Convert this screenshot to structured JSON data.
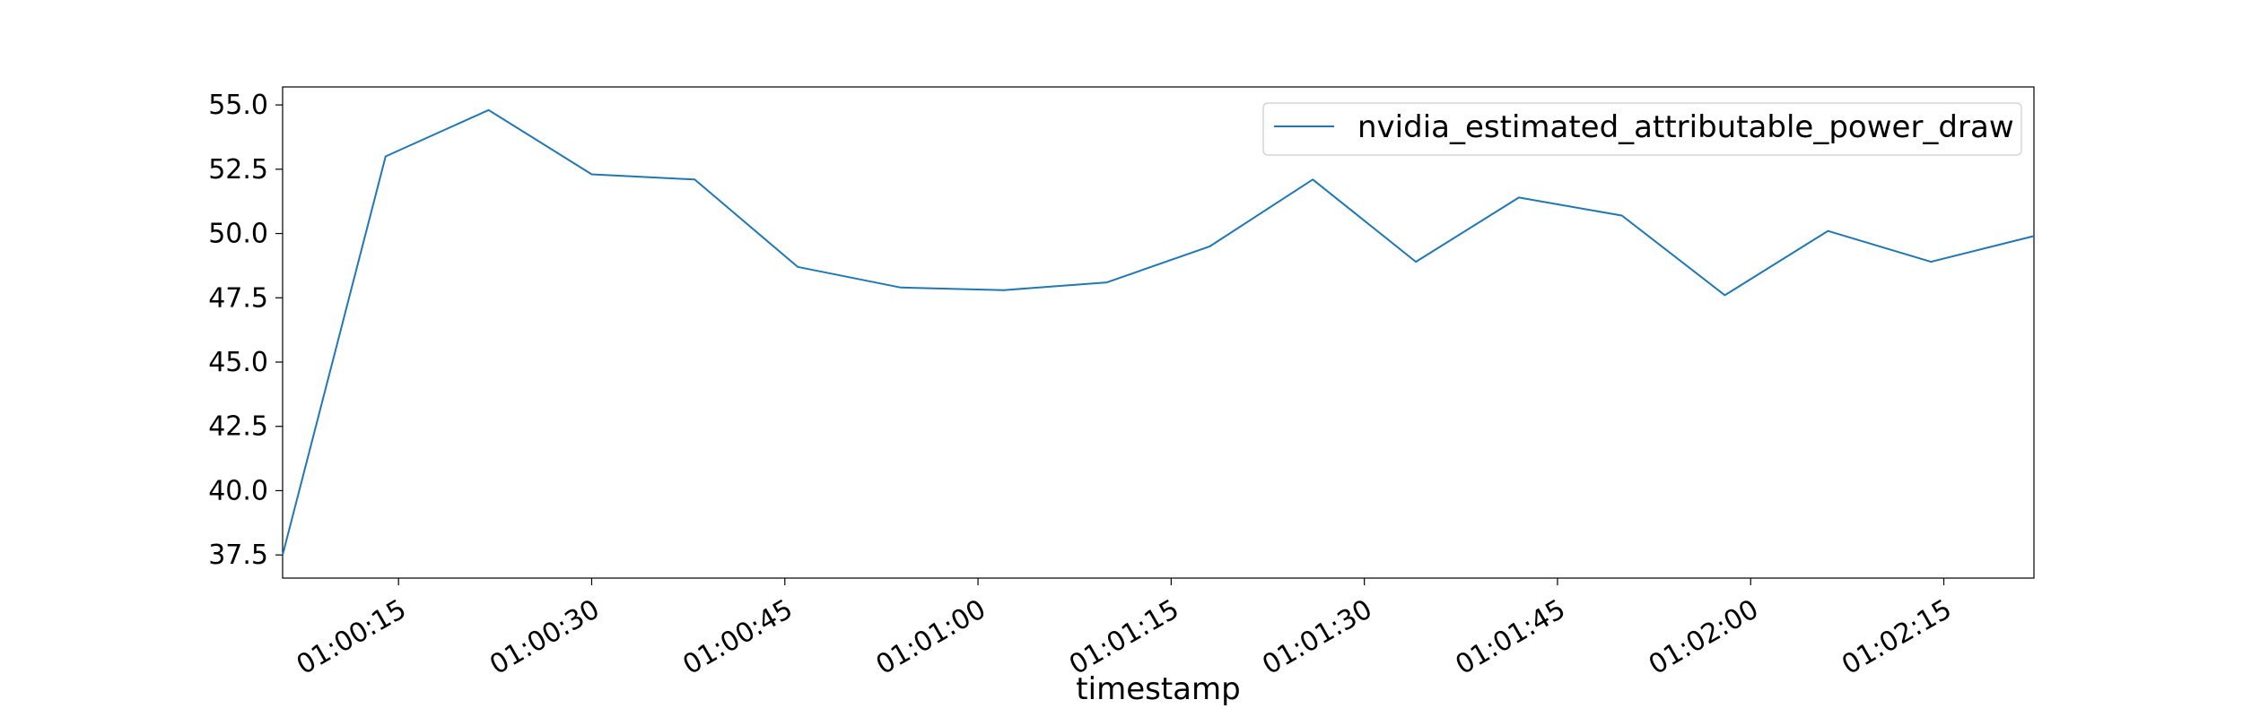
{
  "chart_data": {
    "type": "line",
    "title": "",
    "xlabel": "timestamp",
    "ylabel": "",
    "x": [
      "01:00:06",
      "01:00:14",
      "01:00:22",
      "01:00:30",
      "01:00:38",
      "01:00:46",
      "01:00:54",
      "01:01:02",
      "01:01:10",
      "01:01:18",
      "01:01:26",
      "01:01:34",
      "01:01:42",
      "01:01:50",
      "01:01:58",
      "01:02:06",
      "01:02:14",
      "01:02:22"
    ],
    "series": [
      {
        "name": "nvidia_estimated_attributable_power_draw",
        "color": "#1f77b4",
        "values": [
          37.5,
          53.0,
          54.8,
          52.3,
          52.1,
          48.7,
          47.9,
          47.8,
          48.1,
          49.5,
          52.1,
          48.9,
          51.4,
          50.7,
          47.6,
          50.1,
          48.9,
          49.9
        ]
      }
    ],
    "x_ticks": [
      "01:00:15",
      "01:00:30",
      "01:00:45",
      "01:01:00",
      "01:01:15",
      "01:01:30",
      "01:01:45",
      "01:02:00",
      "01:02:15"
    ],
    "y_ticks": [
      "37.5",
      "40.0",
      "42.5",
      "45.0",
      "47.5",
      "50.0",
      "52.5",
      "55.0"
    ],
    "xlim": [
      "01:00:06",
      "01:02:22"
    ],
    "ylim": [
      36.6,
      55.7
    ],
    "grid": false,
    "legend_position": "top-right"
  }
}
